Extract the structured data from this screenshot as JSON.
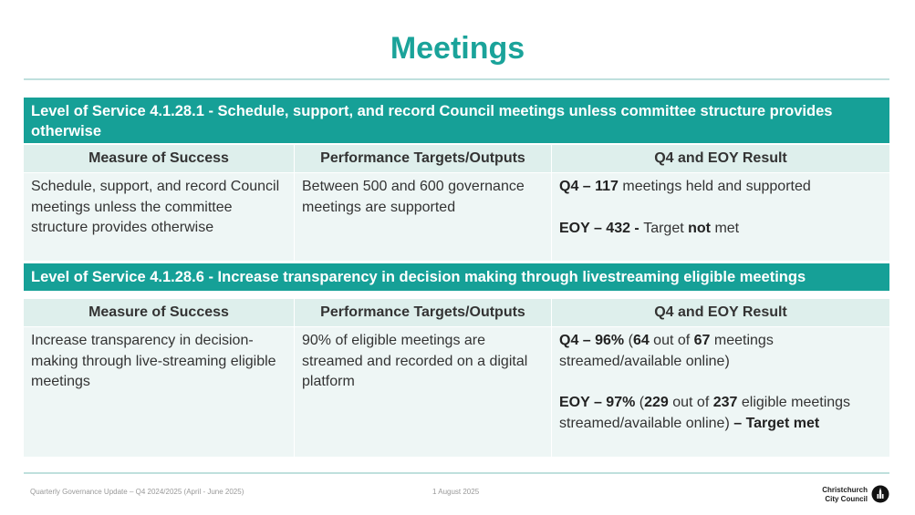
{
  "page": {
    "title": "Meetings"
  },
  "sections": [
    {
      "heading": "Level of Service 4.1.28.1 - Schedule, support, and record Council meetings unless committee structure provides otherwise",
      "columns": [
        "Measure of Success",
        "Performance Targets/Outputs",
        "Q4 and EOY Result"
      ],
      "measure": "Schedule, support, and record Council meetings unless the committee structure provides otherwise",
      "target": "Between 500 and 600 governance meetings are supported",
      "q4": {
        "label": "Q4 – 117",
        "rest": " meetings held and supported"
      },
      "eoy": {
        "label": "EOY – 432 - ",
        "pre": "Target ",
        "bold": "not",
        "post": " met"
      }
    },
    {
      "heading": "Level of Service 4.1.28.6 - Increase transparency in decision making through livestreaming eligible meetings",
      "columns": [
        "Measure of Success",
        "Performance Targets/Outputs",
        "Q4 and EOY Result"
      ],
      "measure": "Increase transparency in decision-making through live-streaming eligible meetings",
      "target": "90% of eligible meetings are streamed and recorded on a digital platform",
      "q4": {
        "label": "Q4 – 96%",
        "a": " (",
        "n1": "64",
        "b": " out of ",
        "n2": "67",
        "c": " meetings streamed/available online)"
      },
      "eoy": {
        "label": "EOY – 97%",
        "a": " (",
        "n1": "229",
        "b": " out of ",
        "n2": "237",
        "c": " eligible meetings streamed/available online) ",
        "d": "– Target ",
        "e": "met"
      }
    }
  ],
  "footer": {
    "left": "Quarterly Governance Update – Q4 2024/2025 (April - June 2025)",
    "center": "1 August 2025",
    "logo_line1": "Christchurch",
    "logo_line2": "City Council"
  },
  "colors": {
    "accent": "#16a097",
    "title": "#1aa39a",
    "row_bg": "#eef6f5",
    "header_bg": "#deefec"
  }
}
